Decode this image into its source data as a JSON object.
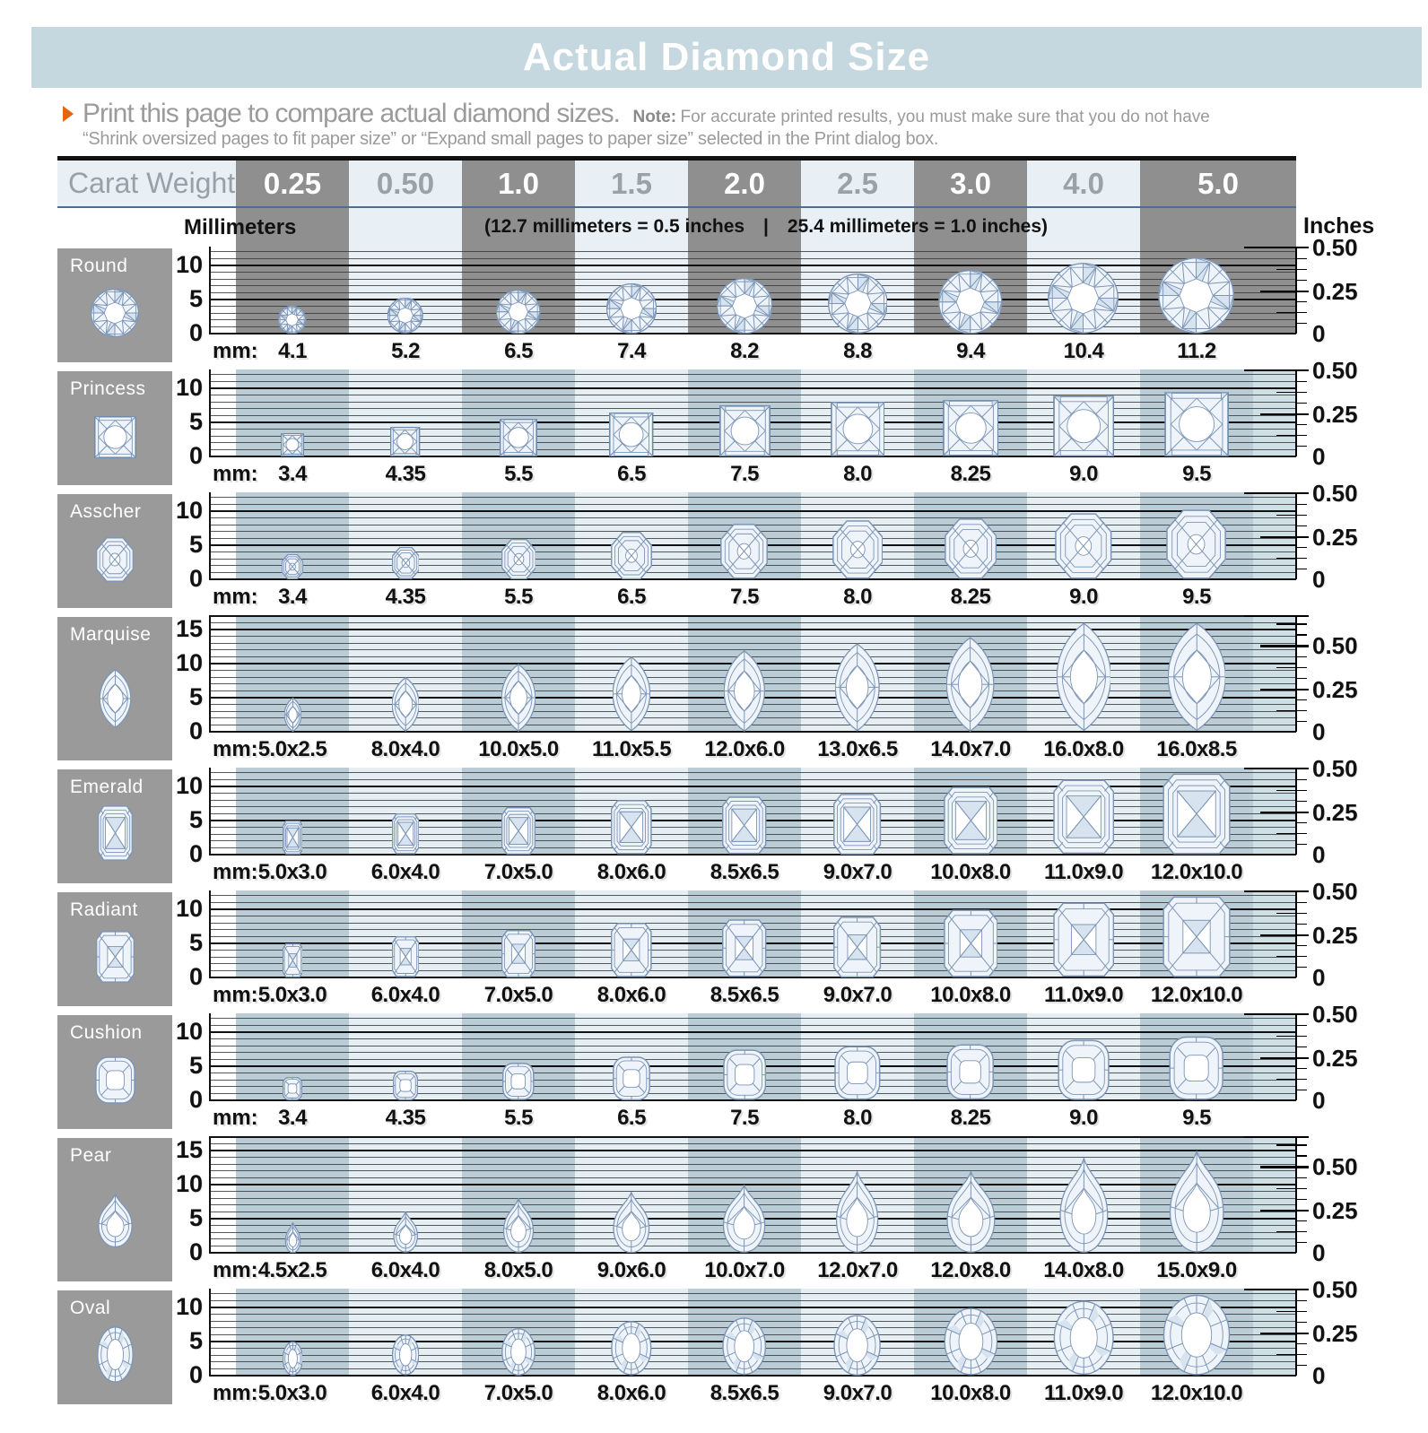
{
  "title": "Actual Diamond Size",
  "intro": {
    "arrow_icon": "right-triangle",
    "headline": "Print this page to compare actual diamond sizes.",
    "note_label": "Note:",
    "note_text": "For accurate printed results, you must make sure that you do not have",
    "note_line2": "“Shrink oversized pages to fit paper size” or “Expand small pages to paper size” selected in the Print dialog box."
  },
  "carat_header": {
    "label": "Carat Weight:",
    "weights": [
      "0.25",
      "0.50",
      "1.0",
      "1.5",
      "2.0",
      "2.5",
      "3.0",
      "4.0",
      "5.0"
    ]
  },
  "scale_header": {
    "millimeters": "Millimeters",
    "conversion_left": "(12.7 millimeters = 0.5 inches",
    "separator": "|",
    "conversion_right": "25.4 millimeters = 1.0 inches)",
    "inches": "Inches"
  },
  "axis": {
    "mm_prefix": "mm:",
    "inch_labels": {
      "zero": "0",
      "quarter": "0.25",
      "half": "0.50"
    }
  },
  "colors": {
    "title_bar_bg": "#c6d8df",
    "accent_orange": "#e8650f",
    "header_dark_col": "#8f8f8f",
    "header_light_col": "#e8f0f5",
    "header_underline": "#4a6f96",
    "row_dark_col": "#bacdd6",
    "row_light_col": "#e5eef3",
    "row_trailing": "#cfdfe6",
    "label_box_bg": "#9a9a9a",
    "grid_line": "#3c3c3c",
    "grid_line_major": "#111111",
    "facet_stroke": "#7d95b6",
    "facet_fill": "#eef4fa",
    "facet_shade": "#d7e4ef"
  },
  "chart_data": {
    "type": "table",
    "title": "Actual Diamond Size",
    "columns_carat": [
      0.25,
      0.5,
      1.0,
      1.5,
      2.0,
      2.5,
      3.0,
      4.0,
      5.0
    ],
    "conversion": {
      "mm_per_half_inch": 12.7,
      "mm_per_inch": 25.4
    },
    "mm_axis_major_ticks": [
      0,
      5,
      10,
      15
    ],
    "inch_axis_ticks": [
      0,
      0.25,
      0.5
    ],
    "shapes": [
      {
        "name": "Round",
        "scale_max_mm": 10,
        "sizes_mm": [
          "4.1",
          "5.2",
          "6.5",
          "7.4",
          "8.2",
          "8.8",
          "9.4",
          "10.4",
          "11.2"
        ]
      },
      {
        "name": "Princess",
        "scale_max_mm": 10,
        "sizes_mm": [
          "3.4",
          "4.35",
          "5.5",
          "6.5",
          "7.5",
          "8.0",
          "8.25",
          "9.0",
          "9.5"
        ]
      },
      {
        "name": "Asscher",
        "scale_max_mm": 10,
        "sizes_mm": [
          "3.4",
          "4.35",
          "5.5",
          "6.5",
          "7.5",
          "8.0",
          "8.25",
          "9.0",
          "9.5"
        ]
      },
      {
        "name": "Marquise",
        "scale_max_mm": 15,
        "sizes_mm": [
          "5.0x2.5",
          "8.0x4.0",
          "10.0x5.0",
          "11.0x5.5",
          "12.0x6.0",
          "13.0x6.5",
          "14.0x7.0",
          "16.0x8.0",
          "16.0x8.5"
        ]
      },
      {
        "name": "Emerald",
        "scale_max_mm": 10,
        "sizes_mm": [
          "5.0x3.0",
          "6.0x4.0",
          "7.0x5.0",
          "8.0x6.0",
          "8.5x6.5",
          "9.0x7.0",
          "10.0x8.0",
          "11.0x9.0",
          "12.0x10.0"
        ]
      },
      {
        "name": "Radiant",
        "scale_max_mm": 10,
        "sizes_mm": [
          "5.0x3.0",
          "6.0x4.0",
          "7.0x5.0",
          "8.0x6.0",
          "8.5x6.5",
          "9.0x7.0",
          "10.0x8.0",
          "11.0x9.0",
          "12.0x10.0"
        ]
      },
      {
        "name": "Cushion",
        "scale_max_mm": 10,
        "sizes_mm": [
          "3.4",
          "4.35",
          "5.5",
          "6.5",
          "7.5",
          "8.0",
          "8.25",
          "9.0",
          "9.5"
        ]
      },
      {
        "name": "Pear",
        "scale_max_mm": 15,
        "sizes_mm": [
          "4.5x2.5",
          "6.0x4.0",
          "8.0x5.0",
          "9.0x6.0",
          "10.0x7.0",
          "12.0x7.0",
          "12.0x8.0",
          "14.0x8.0",
          "15.0x9.0"
        ]
      },
      {
        "name": "Oval",
        "scale_max_mm": 10,
        "sizes_mm": [
          "5.0x3.0",
          "6.0x4.0",
          "7.0x5.0",
          "8.0x6.0",
          "8.5x6.5",
          "9.0x7.0",
          "10.0x8.0",
          "11.0x9.0",
          "12.0x10.0"
        ]
      }
    ]
  }
}
